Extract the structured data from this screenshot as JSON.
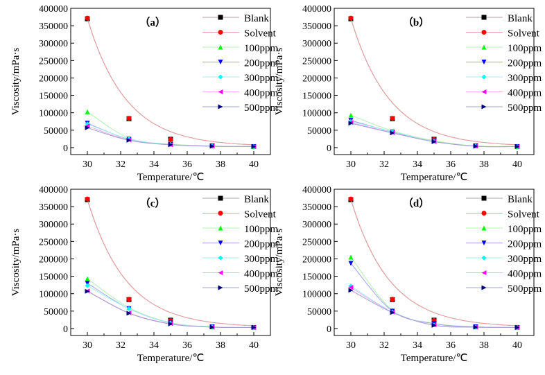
{
  "chart_data": [
    {
      "type": "scatter",
      "panel_label": "（a）",
      "xlabel": "Temperature/℃",
      "ylabel": "Viscosity/mPa·s",
      "xlim": [
        29,
        41
      ],
      "ylim": [
        -20000,
        400000
      ],
      "xticks": [
        30,
        32,
        34,
        36,
        38,
        40
      ],
      "yticks": [
        0,
        50000,
        100000,
        150000,
        200000,
        250000,
        300000,
        350000,
        400000
      ],
      "legend": "top-right",
      "grid": false,
      "x": [
        30,
        32.5,
        35,
        37.5,
        40
      ],
      "series": [
        {
          "name": "Blank",
          "color": "#000000",
          "marker": "square",
          "values": [
            370000,
            83000,
            24000,
            5000,
            3000
          ]
        },
        {
          "name": "Solvent",
          "color": "#ff0000",
          "marker": "circle",
          "values": [
            372000,
            84000,
            23000,
            5000,
            3000
          ]
        },
        {
          "name": "100ppm",
          "color": "#00ff00",
          "marker": "triangle-up",
          "values": [
            103000,
            27000,
            10000,
            5000,
            3000
          ]
        },
        {
          "name": "200ppm",
          "color": "#0000ff",
          "marker": "triangle-down",
          "values": [
            70000,
            24000,
            9000,
            4000,
            3000
          ]
        },
        {
          "name": "300ppm",
          "color": "#00ffff",
          "marker": "diamond",
          "values": [
            68000,
            25000,
            9000,
            4000,
            3000
          ]
        },
        {
          "name": "400ppm",
          "color": "#ff00ff",
          "marker": "triangle-left",
          "values": [
            62000,
            22000,
            8000,
            4000,
            3000
          ]
        },
        {
          "name": "500ppm",
          "color": "#000080",
          "marker": "triangle-right",
          "values": [
            57000,
            21000,
            8000,
            4000,
            3000
          ]
        }
      ]
    },
    {
      "type": "scatter",
      "panel_label": "（b）",
      "xlabel": "Temperature/℃",
      "ylabel": "Viscosity/mPa·s",
      "xlim": [
        29,
        41
      ],
      "ylim": [
        -20000,
        400000
      ],
      "xticks": [
        30,
        32,
        34,
        36,
        38,
        40
      ],
      "yticks": [
        0,
        50000,
        100000,
        150000,
        200000,
        250000,
        300000,
        350000,
        400000
      ],
      "legend": "top-right",
      "grid": false,
      "x": [
        30,
        32.5,
        35,
        37.5,
        40
      ],
      "series": [
        {
          "name": "Blank",
          "color": "#000000",
          "marker": "square",
          "values": [
            370000,
            83000,
            24000,
            5000,
            3000
          ]
        },
        {
          "name": "Solvent",
          "color": "#ff0000",
          "marker": "circle",
          "values": [
            372000,
            84000,
            23000,
            5000,
            3000
          ]
        },
        {
          "name": "100ppm",
          "color": "#00ff00",
          "marker": "triangle-up",
          "values": [
            93000,
            48000,
            20000,
            5000,
            3000
          ]
        },
        {
          "name": "200ppm",
          "color": "#0000ff",
          "marker": "triangle-down",
          "values": [
            78000,
            45000,
            18000,
            4000,
            3000
          ]
        },
        {
          "name": "300ppm",
          "color": "#00ffff",
          "marker": "diamond",
          "values": [
            75000,
            46000,
            18000,
            4000,
            3000
          ]
        },
        {
          "name": "400ppm",
          "color": "#ff00ff",
          "marker": "triangle-left",
          "values": [
            72000,
            43000,
            17000,
            4000,
            3000
          ]
        },
        {
          "name": "500ppm",
          "color": "#000080",
          "marker": "triangle-right",
          "values": [
            70000,
            42000,
            17000,
            4000,
            3000
          ]
        }
      ]
    },
    {
      "type": "scatter",
      "panel_label": "（c）",
      "xlabel": "Temperature/℃",
      "ylabel": "Viscosity/mPa·s",
      "xlim": [
        29,
        41
      ],
      "ylim": [
        -20000,
        400000
      ],
      "xticks": [
        30,
        32,
        34,
        36,
        38,
        40
      ],
      "yticks": [
        0,
        50000,
        100000,
        150000,
        200000,
        250000,
        300000,
        350000,
        400000
      ],
      "legend": "top-right",
      "grid": false,
      "x": [
        30,
        32.5,
        35,
        37.5,
        40
      ],
      "series": [
        {
          "name": "Blank",
          "color": "#000000",
          "marker": "square",
          "values": [
            370000,
            83000,
            24000,
            5000,
            3000
          ]
        },
        {
          "name": "Solvent",
          "color": "#ff0000",
          "marker": "circle",
          "values": [
            372000,
            84000,
            23000,
            5000,
            3000
          ]
        },
        {
          "name": "100ppm",
          "color": "#00ff00",
          "marker": "triangle-up",
          "values": [
            143000,
            60000,
            17000,
            5000,
            3000
          ]
        },
        {
          "name": "200ppm",
          "color": "#0000ff",
          "marker": "triangle-down",
          "values": [
            130000,
            57000,
            16000,
            5000,
            3000
          ]
        },
        {
          "name": "300ppm",
          "color": "#00ffff",
          "marker": "diamond",
          "values": [
            123000,
            57000,
            16000,
            5000,
            3000
          ]
        },
        {
          "name": "400ppm",
          "color": "#ff00ff",
          "marker": "triangle-left",
          "values": [
            108000,
            45000,
            14000,
            4000,
            3000
          ]
        },
        {
          "name": "500ppm",
          "color": "#000080",
          "marker": "triangle-right",
          "values": [
            107000,
            44000,
            13000,
            4000,
            3000
          ]
        }
      ]
    },
    {
      "type": "scatter",
      "panel_label": "（d）",
      "xlabel": "Temperature/℃",
      "ylabel": "Viscosity/mPa·s",
      "xlim": [
        29,
        41
      ],
      "ylim": [
        -20000,
        400000
      ],
      "xticks": [
        30,
        32,
        34,
        36,
        38,
        40
      ],
      "yticks": [
        0,
        50000,
        100000,
        150000,
        200000,
        250000,
        300000,
        350000,
        400000
      ],
      "legend": "top-right",
      "grid": false,
      "x": [
        30,
        32.5,
        35,
        37.5,
        40
      ],
      "series": [
        {
          "name": "Blank",
          "color": "#000000",
          "marker": "square",
          "values": [
            370000,
            83000,
            24000,
            5000,
            3000
          ]
        },
        {
          "name": "Solvent",
          "color": "#ff0000",
          "marker": "circle",
          "values": [
            372000,
            84000,
            23000,
            5000,
            3000
          ]
        },
        {
          "name": "100ppm",
          "color": "#00ff00",
          "marker": "triangle-up",
          "values": [
            205000,
            52000,
            15000,
            5000,
            3000
          ]
        },
        {
          "name": "200ppm",
          "color": "#0000ff",
          "marker": "triangle-down",
          "values": [
            187000,
            50000,
            14000,
            5000,
            3000
          ]
        },
        {
          "name": "300ppm",
          "color": "#00ffff",
          "marker": "diamond",
          "values": [
            122000,
            48000,
            10000,
            4000,
            3000
          ]
        },
        {
          "name": "400ppm",
          "color": "#ff00ff",
          "marker": "triangle-left",
          "values": [
            118000,
            47000,
            10000,
            4000,
            3000
          ]
        },
        {
          "name": "500ppm",
          "color": "#000080",
          "marker": "triangle-right",
          "values": [
            110000,
            46000,
            9000,
            4000,
            3000
          ]
        }
      ]
    }
  ]
}
